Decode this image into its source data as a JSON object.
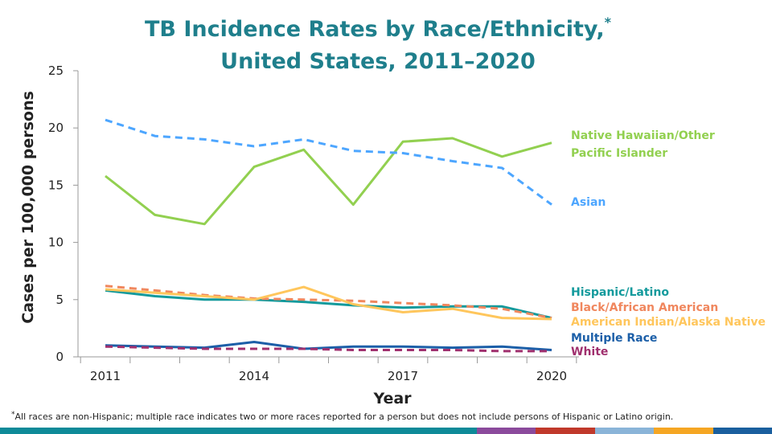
{
  "title_line1": "TB Incidence Rates by Race/Ethnicity,",
  "title_mark": "*",
  "title_line2": "United States, 2011–2020",
  "footnote_mark": "*",
  "footnote": "All races are non-Hispanic; multiple race indicates two or more races reported for a person but does not include persons of Hispanic or Latino origin.",
  "bottom_bar_colors": [
    "#0e8a98",
    "#8b4a9c",
    "#c0392b",
    "#8ab4d8",
    "#f5a623",
    "#1a5f9e"
  ],
  "chart_data": {
    "type": "line",
    "xlabel": "Year",
    "ylabel": "Cases per 100,000 persons",
    "x": [
      2011,
      2012,
      2013,
      2014,
      2015,
      2016,
      2017,
      2018,
      2019,
      2020
    ],
    "xtick_labels": [
      "2011",
      "2014",
      "2017",
      "2020"
    ],
    "xtick_values": [
      2011,
      2014,
      2017,
      2020
    ],
    "ylim": [
      0,
      25
    ],
    "yticks": [
      0,
      5,
      10,
      15,
      20,
      25
    ],
    "grid": false,
    "series": [
      {
        "name": "Native Hawaiian/Other Pacific Islander",
        "label_lines": [
          "Native Hawaiian/Other",
          "Pacific Islander"
        ],
        "color": "#92d050",
        "dash": false,
        "values": [
          15.8,
          12.4,
          11.6,
          16.6,
          18.1,
          13.3,
          18.8,
          19.1,
          17.5,
          18.7
        ]
      },
      {
        "name": "Asian",
        "label_lines": [
          "Asian"
        ],
        "color": "#4da6ff",
        "dash": true,
        "values": [
          20.7,
          19.3,
          19.0,
          18.4,
          19.0,
          18.0,
          17.8,
          17.1,
          16.5,
          13.3
        ]
      },
      {
        "name": "Hispanic/Latino",
        "label_lines": [
          "Hispanic/Latino"
        ],
        "color": "#139a9c",
        "dash": false,
        "values": [
          5.8,
          5.3,
          5.0,
          5.0,
          4.8,
          4.5,
          4.3,
          4.4,
          4.4,
          3.4
        ]
      },
      {
        "name": "Black/African American",
        "label_lines": [
          "Black/African American"
        ],
        "color": "#f0875e",
        "dash": true,
        "values": [
          6.2,
          5.8,
          5.4,
          5.1,
          5.0,
          4.9,
          4.7,
          4.5,
          4.2,
          3.4
        ]
      },
      {
        "name": "American Indian/Alaska Native",
        "label_lines": [
          "American Indian/Alaska Native"
        ],
        "color": "#ffc65c",
        "dash": false,
        "values": [
          5.9,
          5.6,
          5.3,
          5.0,
          6.1,
          4.6,
          3.9,
          4.2,
          3.4,
          3.3
        ]
      },
      {
        "name": "Multiple Race",
        "label_lines": [
          "Multiple Race"
        ],
        "color": "#1c5fa8",
        "dash": false,
        "values": [
          1.0,
          0.9,
          0.8,
          1.3,
          0.7,
          0.9,
          0.9,
          0.8,
          0.9,
          0.6
        ]
      },
      {
        "name": "White",
        "label_lines": [
          "White"
        ],
        "color": "#a0306e",
        "dash": true,
        "values": [
          0.9,
          0.8,
          0.7,
          0.7,
          0.7,
          0.6,
          0.6,
          0.6,
          0.5,
          0.5
        ]
      }
    ]
  }
}
